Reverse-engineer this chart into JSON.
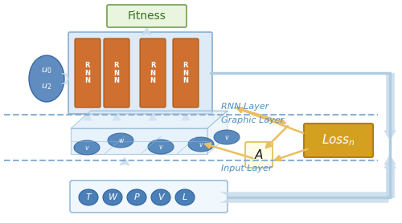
{
  "bg_color": "#ffffff",
  "rnn_box_color": "#deeaf5",
  "rnn_box_edge": "#8ab0d0",
  "rnn_rect_color": "#d07030",
  "rnn_rect_edge": "#a05010",
  "fitness_box_color": "#eaf5e0",
  "fitness_box_edge": "#70a050",
  "loss_box_color": "#d4a020",
  "loss_box_edge": "#b08010",
  "arrow_color": "#b0cce0",
  "arrow_fill": "#c8dcec",
  "orange_arrow_color": "#e8c060",
  "dashed_line_color": "#80aad0",
  "input_ellipse_color": "#4a7fb8",
  "input_text_color": "#ffffff",
  "node_ellipse_color": "#4a80b8",
  "label_color": "#5090c0",
  "u_ellipse_color": "#5080b8",
  "rnn_layer_label": "RNN Layer",
  "graphic_layer_label": "Graphic Layer",
  "input_layer_label": "Input Layer",
  "fitness_label": "Fitness",
  "input_nodes": [
    "T",
    "W",
    "P",
    "V",
    "L"
  ]
}
